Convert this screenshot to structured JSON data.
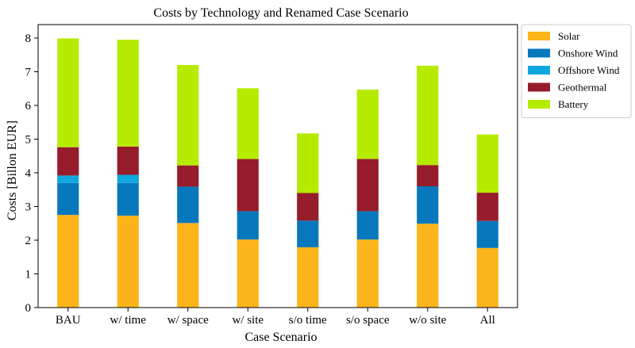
{
  "chart_data": {
    "type": "bar",
    "stacked": true,
    "title": "Costs by Technology and Renamed Case Scenario",
    "xlabel": "Case Scenario",
    "ylabel": "Costs [Billon EUR]",
    "ylim": [
      0,
      8.4
    ],
    "yticks": [
      0,
      1,
      2,
      3,
      4,
      5,
      6,
      7,
      8
    ],
    "grid": false,
    "legend_position": "outside-top-right",
    "categories": [
      "BAU",
      "w/ time",
      "w/ space",
      "w/ site",
      "s/o time",
      "s/o space",
      "w/o site",
      "All"
    ],
    "series": [
      {
        "name": "Solar",
        "color": "#FBB41A",
        "values": [
          2.75,
          2.73,
          2.51,
          2.02,
          1.79,
          2.02,
          2.49,
          1.77
        ]
      },
      {
        "name": "Onshore Wind",
        "color": "#0878BD",
        "values": [
          0.95,
          0.97,
          1.08,
          0.84,
          0.79,
          0.84,
          1.11,
          0.8
        ]
      },
      {
        "name": "Offshore Wind",
        "color": "#0FA8DE",
        "values": [
          0.22,
          0.24,
          0.0,
          0.0,
          0.0,
          0.0,
          0.0,
          0.0
        ]
      },
      {
        "name": "Geothermal",
        "color": "#961C2B",
        "values": [
          0.84,
          0.84,
          0.63,
          1.55,
          0.82,
          1.55,
          0.63,
          0.84
        ]
      },
      {
        "name": "Battery",
        "color": "#B6EB00",
        "values": [
          3.23,
          3.17,
          2.98,
          2.1,
          1.77,
          2.06,
          2.95,
          1.73
        ]
      }
    ]
  }
}
